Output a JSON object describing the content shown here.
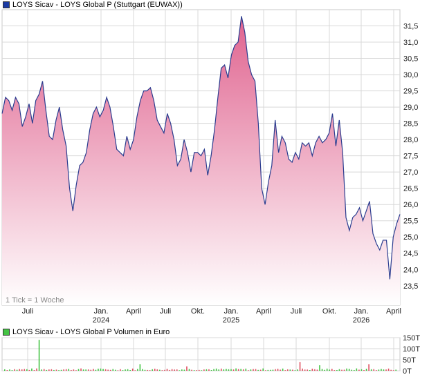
{
  "price_legend": {
    "label": "LOYS Sicav - LOYS Global P (Stuttgart (EUWAX))",
    "color": "#1b3aa3"
  },
  "volume_legend": {
    "label": "LOYS Sicav - LOYS Global P Volumen in Euro",
    "color": "#44c444"
  },
  "tick_note": "1 Tick = 1 Woche",
  "colors": {
    "line": "#2a3c8f",
    "fill_top": "#e0638f",
    "fill_bottom": "#ffffff",
    "grid": "#d8d8d8",
    "vol_up": "#44c444",
    "vol_down": "#e05060"
  },
  "chart_data": [
    {
      "type": "area",
      "title": "LOYS Sicav - LOYS Global P (Stuttgart (EUWAX))",
      "ylim": [
        22.9,
        32.0
      ],
      "yticks": [
        "31,5",
        "31,0",
        "30,5",
        "30,0",
        "29,5",
        "29,0",
        "28,5",
        "28,0",
        "27,5",
        "27,0",
        "26,5",
        "26,0",
        "25,5",
        "25,0",
        "24,5",
        "24,0",
        "23,5"
      ],
      "ytick_values": [
        31.5,
        31.0,
        30.5,
        30.0,
        29.5,
        29.0,
        28.5,
        28.0,
        27.5,
        27.0,
        26.5,
        26.0,
        25.5,
        25.0,
        24.5,
        24.0,
        23.5
      ],
      "xlim": [
        0,
        146
      ],
      "xticks": [
        {
          "x": 12,
          "label": "Juli",
          "sub": ""
        },
        {
          "x": 38,
          "label": "Jan.",
          "sub": "2024"
        },
        {
          "x": 50,
          "label": "April",
          "sub": ""
        },
        {
          "x": 62,
          "label": "Juli",
          "sub": ""
        },
        {
          "x": 75,
          "label": "Okt.",
          "sub": ""
        },
        {
          "x": 88,
          "label": "Jan.",
          "sub": "2025"
        },
        {
          "x": 101,
          "label": "April",
          "sub": ""
        },
        {
          "x": 113,
          "label": "Juli",
          "sub": ""
        },
        {
          "x": 126,
          "label": "Okt.",
          "sub": ""
        },
        {
          "x": 139,
          "label": "Jan.",
          "sub": "2026"
        },
        {
          "x": 152,
          "label": "April",
          "sub": ""
        }
      ],
      "values": [
        28.8,
        29.3,
        29.2,
        28.9,
        29.3,
        29.1,
        28.4,
        28.7,
        29.1,
        28.5,
        29.2,
        29.4,
        29.8,
        28.9,
        28.1,
        28.0,
        28.6,
        29.0,
        28.3,
        27.8,
        26.5,
        25.8,
        26.6,
        27.2,
        27.3,
        27.6,
        28.3,
        28.8,
        29.0,
        28.7,
        28.9,
        29.3,
        29.0,
        28.4,
        27.7,
        27.6,
        27.5,
        28.1,
        27.7,
        28.0,
        28.7,
        29.2,
        29.5,
        29.5,
        29.6,
        29.2,
        28.6,
        28.4,
        28.2,
        28.8,
        28.5,
        28.0,
        27.2,
        27.4,
        28.0,
        27.6,
        27.0,
        27.6,
        27.6,
        27.5,
        27.7,
        26.9,
        27.5,
        28.3,
        29.3,
        30.2,
        30.3,
        29.9,
        30.6,
        30.9,
        31.0,
        31.8,
        31.3,
        30.4,
        30.0,
        29.8,
        28.5,
        26.5,
        26.0,
        26.7,
        27.2,
        28.6,
        27.6,
        28.1,
        27.9,
        27.4,
        27.3,
        27.6,
        27.4,
        27.9,
        27.8,
        27.9,
        27.5,
        27.9,
        28.1,
        27.9,
        28.0,
        28.2,
        28.8,
        27.8,
        28.6,
        27.6,
        25.6,
        25.2,
        25.6,
        25.7,
        25.9,
        25.5,
        25.8,
        26.1,
        25.1,
        24.8,
        24.6,
        24.9,
        24.9,
        23.7,
        25.0,
        25.4,
        25.7
      ],
      "grid": true
    },
    {
      "type": "bar",
      "title": "LOYS Sicav - LOYS Global P Volumen in Euro",
      "ylim": [
        0,
        150
      ],
      "yticks": [
        "150T",
        "100T",
        "50T",
        "0T"
      ],
      "ytick_values": [
        150,
        100,
        50,
        0
      ],
      "big_bars": [
        {
          "i": 14,
          "value": 140,
          "up": true
        },
        {
          "i": 55,
          "value": 30,
          "up": true
        },
        {
          "i": 74,
          "value": 20,
          "up": false
        },
        {
          "i": 120,
          "value": 40,
          "up": false
        },
        {
          "i": 128,
          "value": 25,
          "up": true
        },
        {
          "i": 148,
          "value": 30,
          "up": false
        }
      ]
    }
  ]
}
